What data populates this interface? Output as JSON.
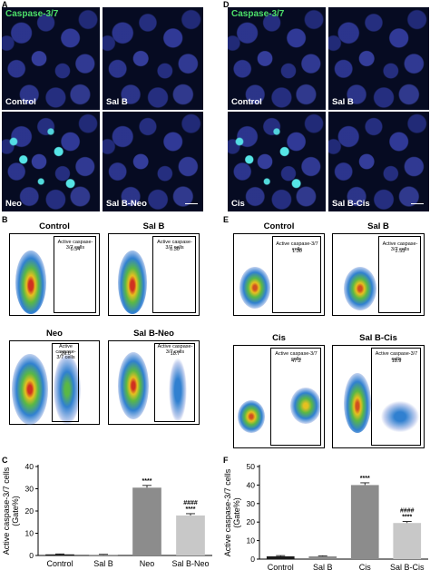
{
  "panel_letters": {
    "A": "A",
    "B": "B",
    "C": "C",
    "D": "D",
    "E": "E",
    "F": "F"
  },
  "microscopy": {
    "stain_label": "Caspase-3/7",
    "left": [
      "Control",
      "Sal B",
      "Neo",
      "Sal B-Neo"
    ],
    "right": [
      "Control",
      "Sal B",
      "Cis",
      "Sal B-Cis"
    ]
  },
  "flow": {
    "gate_label": "Active caspase-3/7 cells",
    "left": [
      {
        "title": "Control",
        "value": "0.54"
      },
      {
        "title": "Sal B",
        "value": "0.30"
      },
      {
        "title": "Neo",
        "value": "29.0"
      },
      {
        "title": "Sal B-Neo",
        "value": "18.7"
      }
    ],
    "right": [
      {
        "title": "Control",
        "value": "1.30"
      },
      {
        "title": "Sal B",
        "value": "2.53"
      },
      {
        "title": "Cis",
        "value": "47.2"
      },
      {
        "title": "Sal B-Cis",
        "value": "18.9"
      }
    ]
  },
  "chart_data": [
    {
      "type": "bar",
      "panel": "C",
      "categories": [
        "Control",
        "Sal B",
        "Neo",
        "Sal B-Neo"
      ],
      "values": [
        0.5,
        0.3,
        30.5,
        18.0
      ],
      "errors": [
        0.2,
        0.2,
        1.0,
        0.8
      ],
      "colors": [
        "#1a1a1a",
        "#8c8c8c",
        "#8c8c8c",
        "#c8c8c8"
      ],
      "annotations": [
        {
          "category": "Neo",
          "lines": [
            "****"
          ]
        },
        {
          "category": "Sal B-Neo",
          "lines": [
            "####",
            "****"
          ]
        }
      ],
      "ylabel_lines": [
        "Active caspase-3/7 cells",
        "(Gate%)"
      ],
      "yticks": [
        0,
        10,
        20,
        30,
        40
      ],
      "ylim": [
        0,
        40
      ]
    },
    {
      "type": "bar",
      "panel": "F",
      "categories": [
        "Control",
        "Sal B",
        "Cis",
        "Sal B-Cis"
      ],
      "values": [
        1.5,
        1.5,
        40.0,
        19.5
      ],
      "errors": [
        0.4,
        0.3,
        1.2,
        0.8
      ],
      "colors": [
        "#1a1a1a",
        "#8c8c8c",
        "#8c8c8c",
        "#c8c8c8"
      ],
      "annotations": [
        {
          "category": "Cis",
          "lines": [
            "****"
          ]
        },
        {
          "category": "Sal B-Cis",
          "lines": [
            "####",
            "****"
          ]
        }
      ],
      "ylabel_lines": [
        "Active caspase-3/7 cells",
        "(Gate%)"
      ],
      "yticks": [
        0,
        10,
        20,
        30,
        40,
        50
      ],
      "ylim": [
        0,
        50
      ]
    }
  ]
}
